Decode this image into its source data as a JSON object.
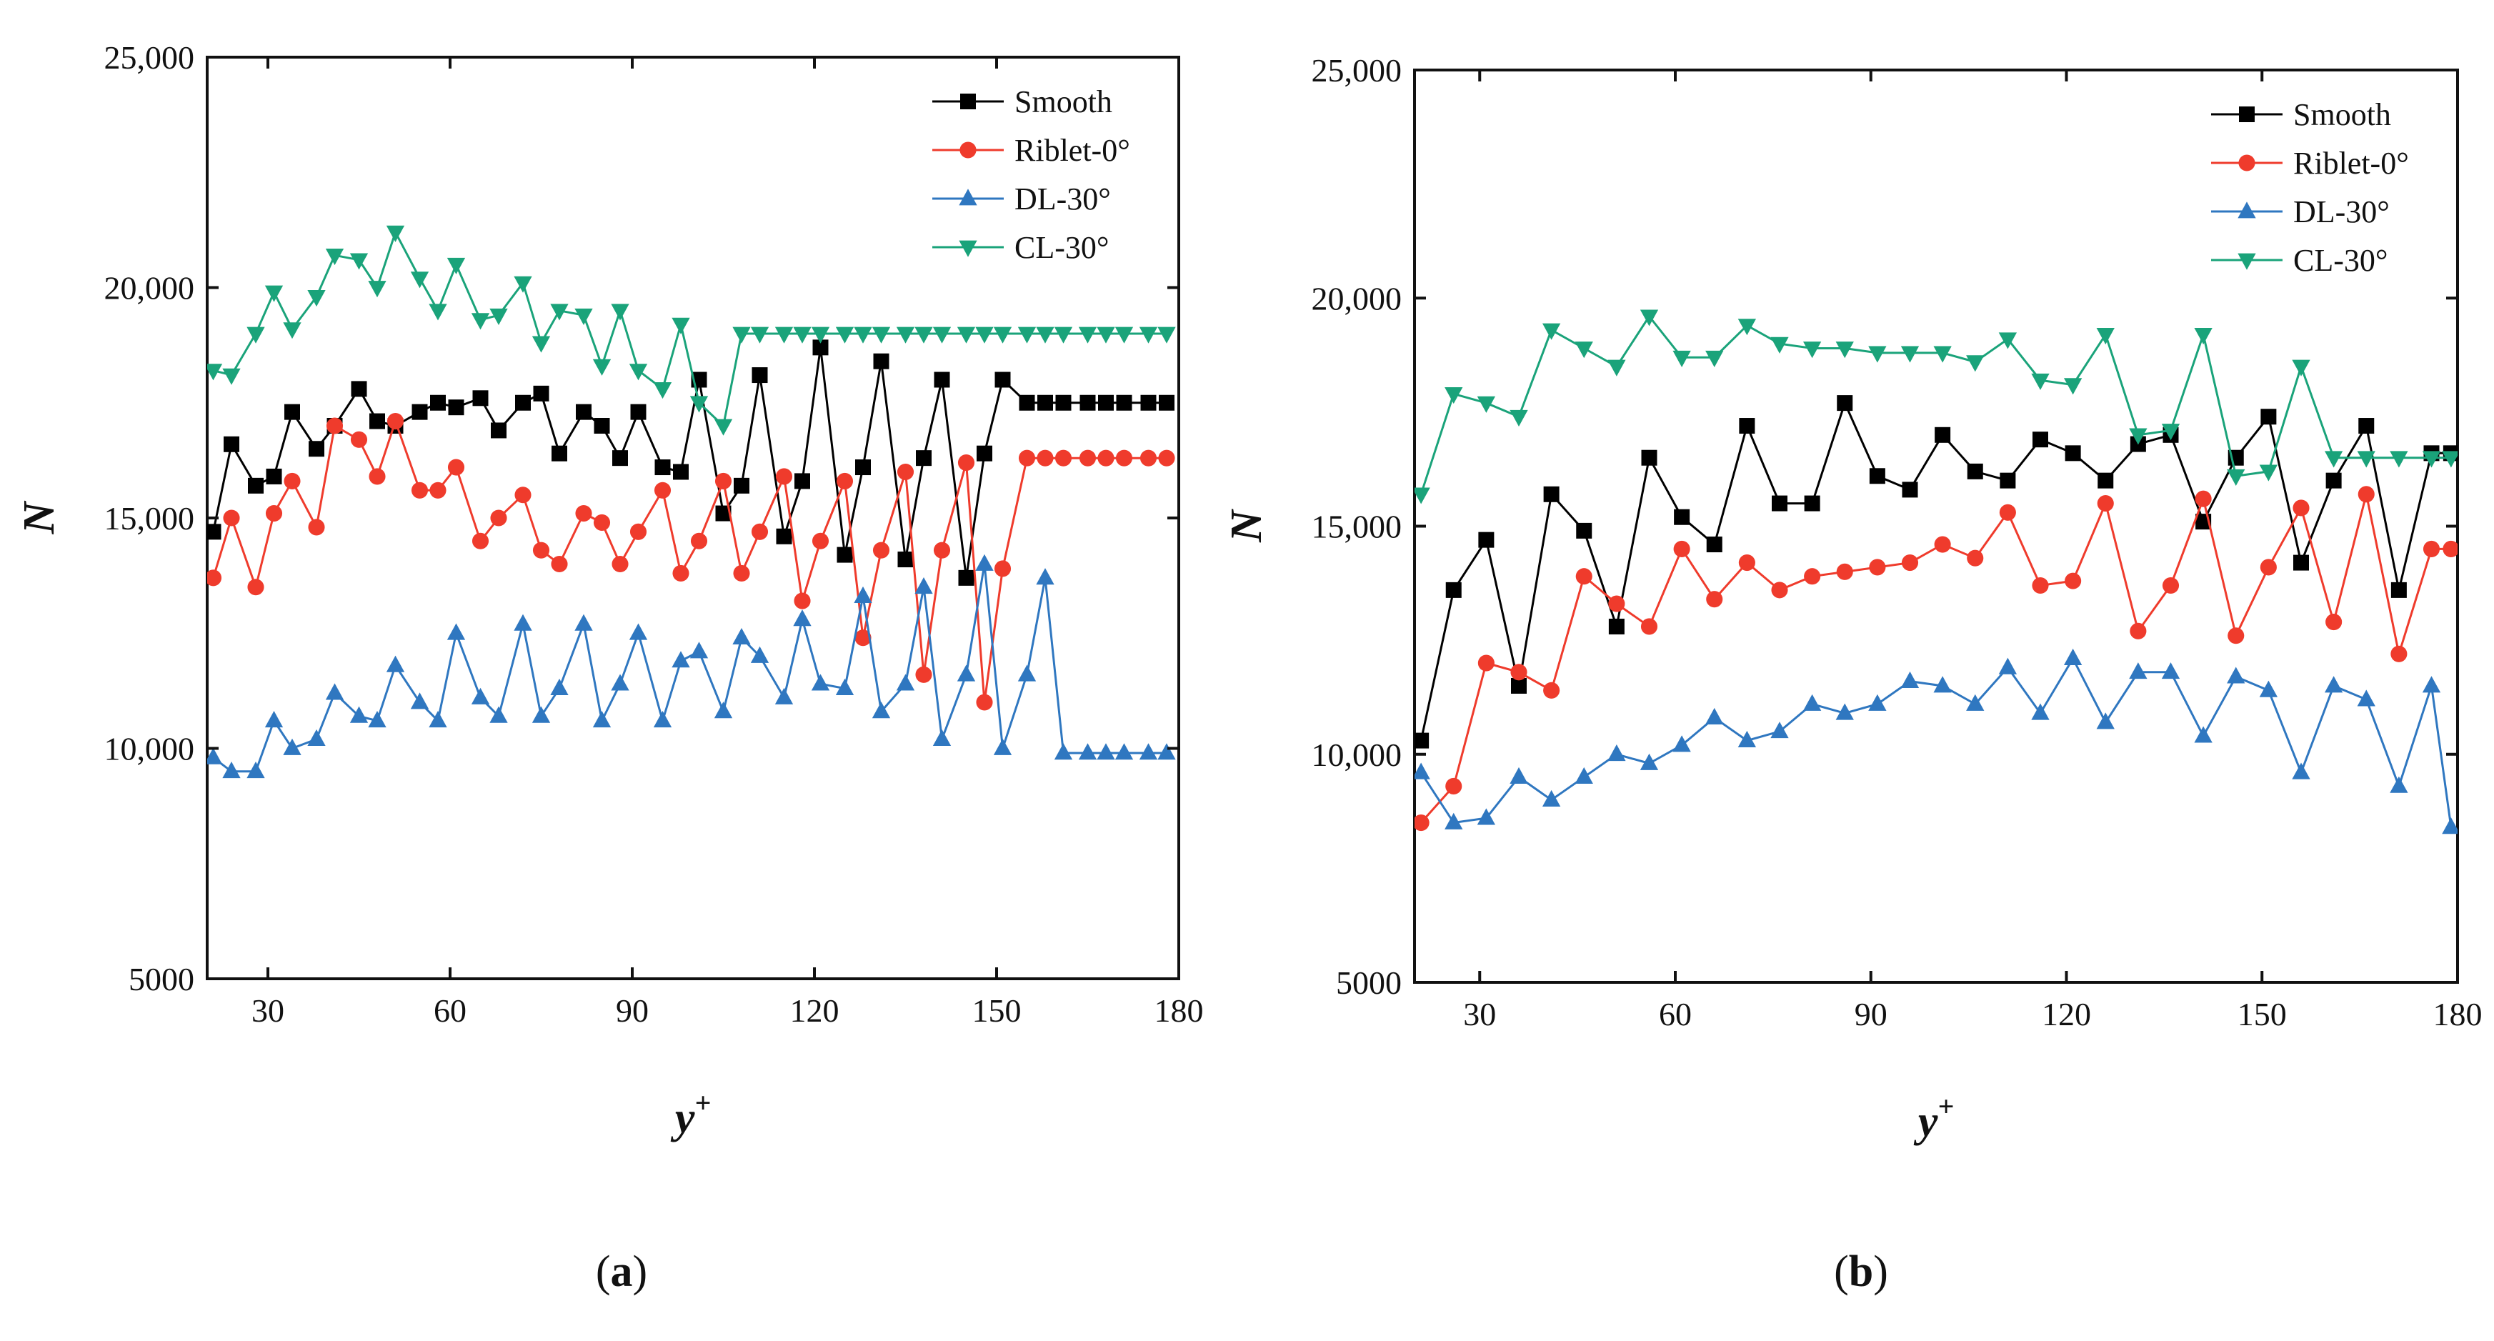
{
  "chart_data": [
    {
      "type": "line",
      "panel_label": "a",
      "xlabel": "y",
      "xlabel_sup": "+",
      "ylabel": "N",
      "xlim": [
        20,
        180
      ],
      "ylim": [
        5000,
        25000
      ],
      "xticks": [
        30,
        60,
        90,
        120,
        150,
        180
      ],
      "yticks": [
        5000,
        10000,
        15000,
        20000,
        25000
      ],
      "ytick_labels": [
        "5000",
        "10,000",
        "15,000",
        "20,000",
        "25,000"
      ],
      "grid": false,
      "legend_position": "top-right",
      "series": [
        {
          "name": "Smooth",
          "color": "#000000",
          "marker": "square",
          "x": [
            21,
            24,
            28,
            31,
            34,
            38,
            41,
            45,
            48,
            51,
            55,
            58,
            61,
            65,
            68,
            72,
            75,
            78,
            82,
            85,
            88,
            91,
            95,
            98,
            101,
            105,
            108,
            111,
            115,
            118,
            121,
            125,
            128,
            131,
            135,
            138,
            141,
            145,
            148,
            151,
            155,
            158,
            161,
            165,
            168,
            171,
            175,
            178
          ],
          "y": [
            14700,
            16600,
            15700,
            15900,
            17300,
            16500,
            17000,
            17800,
            17100,
            17000,
            17300,
            17500,
            17400,
            17600,
            16900,
            17500,
            17700,
            16400,
            17300,
            17000,
            16300,
            17300,
            16100,
            16000,
            18000,
            15100,
            15700,
            18100,
            14600,
            15800,
            18700,
            14200,
            16100,
            18400,
            14100,
            16300,
            18000,
            13700,
            16400,
            18000,
            17500,
            17500,
            17500,
            17500,
            17500,
            17500,
            17500,
            17500
          ]
        },
        {
          "name": "Riblet-0°",
          "color": "#ef3b2c",
          "marker": "circle",
          "x": [
            21,
            24,
            28,
            31,
            34,
            38,
            41,
            45,
            48,
            51,
            55,
            58,
            61,
            65,
            68,
            72,
            75,
            78,
            82,
            85,
            88,
            91,
            95,
            98,
            101,
            105,
            108,
            111,
            115,
            118,
            121,
            125,
            128,
            131,
            135,
            138,
            141,
            145,
            148,
            151,
            155,
            158,
            161,
            165,
            168,
            171,
            175,
            178
          ],
          "y": [
            13700,
            15000,
            13500,
            15100,
            15800,
            14800,
            17000,
            16700,
            15900,
            17100,
            15600,
            15600,
            16100,
            14500,
            15000,
            15500,
            14300,
            14000,
            15100,
            14900,
            14000,
            14700,
            15600,
            13800,
            14500,
            15800,
            13800,
            14700,
            15900,
            13200,
            14500,
            15800,
            12400,
            14300,
            16000,
            11600,
            14300,
            16200,
            11000,
            13900,
            16300,
            16300,
            16300,
            16300,
            16300,
            16300,
            16300,
            16300
          ]
        },
        {
          "name": "DL-30°",
          "color": "#2f77c0",
          "marker": "triangle-up",
          "x": [
            21,
            24,
            28,
            31,
            34,
            38,
            41,
            45,
            48,
            51,
            55,
            58,
            61,
            65,
            68,
            72,
            75,
            78,
            82,
            85,
            88,
            91,
            95,
            98,
            101,
            105,
            108,
            111,
            115,
            118,
            121,
            125,
            128,
            131,
            135,
            138,
            141,
            145,
            148,
            151,
            155,
            158,
            161,
            165,
            168,
            171,
            175,
            178
          ],
          "y": [
            9800,
            9500,
            9500,
            10600,
            10000,
            10200,
            11200,
            10700,
            10600,
            11800,
            11000,
            10600,
            12500,
            11100,
            10700,
            12700,
            10700,
            11300,
            12700,
            10600,
            11400,
            12500,
            10600,
            11900,
            12100,
            10800,
            12400,
            12000,
            11100,
            12800,
            11400,
            11300,
            13300,
            10800,
            11400,
            13500,
            10200,
            11600,
            14000,
            10000,
            11600,
            13700,
            9900,
            9900,
            9900,
            9900,
            9900,
            9900
          ]
        },
        {
          "name": "CL-30°",
          "color": "#1aa37a",
          "marker": "triangle-down",
          "x": [
            21,
            24,
            28,
            31,
            34,
            38,
            41,
            45,
            48,
            51,
            55,
            58,
            61,
            65,
            68,
            72,
            75,
            78,
            82,
            85,
            88,
            91,
            95,
            98,
            101,
            105,
            108,
            111,
            115,
            118,
            121,
            125,
            128,
            131,
            135,
            138,
            141,
            145,
            148,
            151,
            155,
            158,
            161,
            165,
            168,
            171,
            175,
            178
          ],
          "y": [
            18200,
            18100,
            19000,
            19900,
            19100,
            19800,
            20700,
            20600,
            20000,
            21200,
            20200,
            19500,
            20500,
            19300,
            19400,
            20100,
            18800,
            19500,
            19400,
            18300,
            19500,
            18200,
            17800,
            19200,
            17500,
            17000,
            19000,
            19000,
            19000,
            19000,
            19000,
            19000,
            19000,
            19000,
            19000,
            19000,
            19000,
            19000,
            19000,
            19000,
            19000,
            19000,
            19000,
            19000,
            19000,
            19000,
            19000,
            19000
          ]
        }
      ]
    },
    {
      "type": "line",
      "panel_label": "b",
      "xlabel": "y",
      "xlabel_sup": "+",
      "ylabel": "N",
      "xlim": [
        20,
        180
      ],
      "ylim": [
        5000,
        25000
      ],
      "xticks": [
        30,
        60,
        90,
        120,
        150,
        180
      ],
      "yticks": [
        5000,
        10000,
        15000,
        20000,
        25000
      ],
      "ytick_labels": [
        "5000",
        "10,000",
        "15,000",
        "20,000",
        "25,000"
      ],
      "grid": false,
      "legend_position": "top-right",
      "series": [
        {
          "name": "Smooth",
          "color": "#000000",
          "marker": "square",
          "x": [
            21,
            26,
            31,
            36,
            41,
            46,
            51,
            56,
            61,
            66,
            71,
            76,
            81,
            86,
            91,
            96,
            101,
            106,
            111,
            116,
            121,
            126,
            131,
            136,
            141,
            146,
            151,
            156,
            161,
            166,
            171,
            176,
            179
          ],
          "y": [
            10300,
            13600,
            14700,
            11500,
            15700,
            14900,
            12800,
            16500,
            15200,
            14600,
            17200,
            15500,
            15500,
            17700,
            16100,
            15800,
            17000,
            16200,
            16000,
            16900,
            16600,
            16000,
            16800,
            17000,
            15100,
            16500,
            17400,
            14200,
            16000,
            17200,
            13600,
            16600,
            16600
          ]
        },
        {
          "name": "Riblet-0°",
          "color": "#ef3b2c",
          "marker": "circle",
          "x": [
            21,
            26,
            31,
            36,
            41,
            46,
            51,
            56,
            61,
            66,
            71,
            76,
            81,
            86,
            91,
            96,
            101,
            106,
            111,
            116,
            121,
            126,
            131,
            136,
            141,
            146,
            151,
            156,
            161,
            166,
            171,
            176,
            179
          ],
          "y": [
            8500,
            9300,
            12000,
            11800,
            11400,
            13900,
            13300,
            12800,
            14500,
            13400,
            14200,
            13600,
            13900,
            14000,
            14100,
            14200,
            14600,
            14300,
            15300,
            13700,
            13800,
            15500,
            12700,
            13700,
            15600,
            12600,
            14100,
            15400,
            12900,
            15700,
            12200,
            14500,
            14500
          ]
        },
        {
          "name": "DL-30°",
          "color": "#2f77c0",
          "marker": "triangle-up",
          "x": [
            21,
            26,
            31,
            36,
            41,
            46,
            51,
            56,
            61,
            66,
            71,
            76,
            81,
            86,
            91,
            96,
            101,
            106,
            111,
            116,
            121,
            126,
            131,
            136,
            141,
            146,
            151,
            156,
            161,
            166,
            171,
            176,
            179
          ],
          "y": [
            9600,
            8500,
            8600,
            9500,
            9000,
            9500,
            10000,
            9800,
            10200,
            10800,
            10300,
            10500,
            11100,
            10900,
            11100,
            11600,
            11500,
            11100,
            11900,
            10900,
            12100,
            10700,
            11800,
            11800,
            10400,
            11700,
            11400,
            9600,
            11500,
            11200,
            9300,
            11500,
            8400
          ]
        },
        {
          "name": "CL-30°",
          "color": "#1aa37a",
          "marker": "triangle-down",
          "x": [
            21,
            26,
            31,
            36,
            41,
            46,
            51,
            56,
            61,
            66,
            71,
            76,
            81,
            86,
            91,
            96,
            101,
            106,
            111,
            116,
            121,
            126,
            131,
            136,
            141,
            146,
            151,
            156,
            161,
            166,
            171,
            176,
            179
          ],
          "y": [
            15700,
            17900,
            17700,
            17400,
            19300,
            18900,
            18500,
            19600,
            18700,
            18700,
            19400,
            19000,
            18900,
            18900,
            18800,
            18800,
            18800,
            18600,
            19100,
            18200,
            18100,
            19200,
            17000,
            17100,
            19200,
            16100,
            16200,
            18500,
            16500,
            16500,
            16500,
            16500,
            16500
          ]
        }
      ]
    }
  ]
}
